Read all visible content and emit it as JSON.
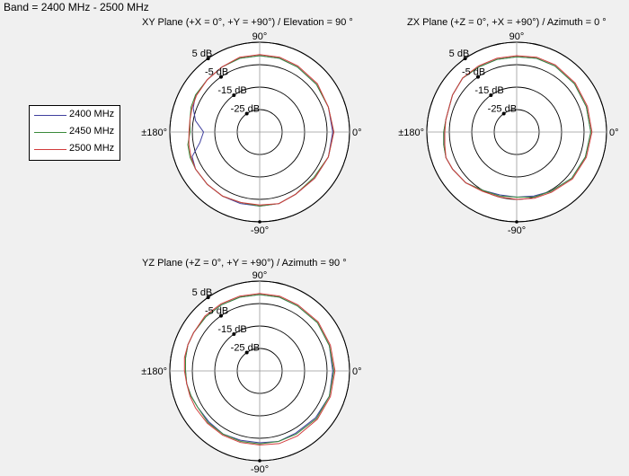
{
  "band_title": "Band = 2400 MHz - 2500 MHz",
  "legend": {
    "entries": [
      {
        "label": "2400 MHz",
        "color": "#3f3f9e"
      },
      {
        "label": "2450 MHz",
        "color": "#3b8a3b"
      },
      {
        "label": "2500 MHz",
        "color": "#d23c3c"
      }
    ]
  },
  "chart_data": [
    {
      "type": "polar",
      "title": "XY Plane (+X = 0°, +Y = +90°) / Elevation = 90 °",
      "angle_labels": {
        "top": "90°",
        "right": "0°",
        "bottom": "-90°",
        "left": "±180°"
      },
      "radial_labels": [
        "5 dB",
        "-5 dB",
        "-15 dB",
        "-25 dB"
      ],
      "radial_values_db": [
        5,
        -5,
        -15,
        -25
      ],
      "r_range_db": [
        -35,
        5
      ],
      "angles_deg": [
        0,
        20,
        40,
        60,
        75,
        90,
        105,
        120,
        135,
        150,
        160,
        170,
        180,
        190,
        200,
        210,
        225,
        240,
        255,
        270,
        285,
        300,
        320,
        340,
        360
      ],
      "series": [
        {
          "name": "2400 MHz",
          "values_db": [
            -2.5,
            -2.5,
            -2,
            -1.5,
            -1,
            -1,
            -1,
            -1.5,
            -2,
            -2,
            -3.5,
            -6,
            -10,
            -8,
            -3,
            -2,
            -2,
            -2,
            -2,
            -2,
            -2,
            -3,
            -3,
            -2.5,
            -2.5
          ]
        },
        {
          "name": "2450 MHz",
          "values_db": [
            -2,
            -2.5,
            -2,
            -1.5,
            -1,
            -1,
            -1,
            -1.5,
            -2,
            -2,
            -2.5,
            -3.5,
            -4,
            -2.5,
            -2,
            -2,
            -2,
            -2,
            -2.5,
            -2,
            -2,
            -3,
            -3.5,
            -2.5,
            -2
          ]
        },
        {
          "name": "2500 MHz",
          "values_db": [
            -2,
            -2.5,
            -1.5,
            -1,
            -0.5,
            -0.5,
            -0.5,
            -1.5,
            -2,
            -2.5,
            -3,
            -3.5,
            -3.5,
            -3,
            -2.5,
            -2,
            -2,
            -2,
            -2.5,
            -2.5,
            -2,
            -3,
            -3,
            -2.5,
            -2
          ]
        }
      ]
    },
    {
      "type": "polar",
      "title": "ZX Plane (+Z = 0°, +X = +90°) / Azimuth = 0 °",
      "angle_labels": {
        "top": "90°",
        "right": "0°",
        "bottom": "-90°",
        "left": "±180°"
      },
      "radial_labels": [
        "5 dB",
        "-5 dB",
        "-15 dB",
        "-25 dB"
      ],
      "radial_values_db": [
        5,
        -5,
        -15,
        -25
      ],
      "r_range_db": [
        -35,
        5
      ],
      "angles_deg": [
        0,
        20,
        40,
        60,
        75,
        90,
        105,
        120,
        135,
        150,
        160,
        170,
        180,
        190,
        200,
        210,
        225,
        240,
        255,
        270,
        285,
        300,
        320,
        340,
        360
      ],
      "series": [
        {
          "name": "2400 MHz",
          "values_db": [
            -2,
            -2,
            -1.5,
            -1,
            -1,
            -1.5,
            -1.5,
            -1.5,
            -1,
            -2,
            -3,
            -3,
            -2.5,
            -2,
            -1.5,
            -2,
            -3,
            -5,
            -6,
            -6,
            -5.5,
            -4.5,
            -3,
            -2.5,
            -2
          ]
        },
        {
          "name": "2450 MHz",
          "values_db": [
            -2,
            -2,
            -1.5,
            -1,
            -1,
            -1.5,
            -1.5,
            -1.5,
            -1,
            -2,
            -3,
            -3,
            -2.5,
            -2,
            -1.5,
            -2,
            -3,
            -5,
            -5.5,
            -6,
            -5,
            -4.5,
            -3,
            -2.5,
            -2
          ]
        },
        {
          "name": "2500 MHz",
          "values_db": [
            -1.5,
            -1.5,
            -1,
            -0.5,
            -0.5,
            -1,
            -1,
            -1,
            -1,
            -2,
            -3,
            -3,
            -3,
            -2.5,
            -1.5,
            -2,
            -3,
            -4.5,
            -5,
            -5,
            -4.5,
            -4,
            -2.5,
            -2,
            -1.5
          ]
        }
      ]
    },
    {
      "type": "polar",
      "title": "YZ Plane (+Z = 0°, +Y = +90°) / Azimuth = 90 °",
      "angle_labels": {
        "top": "90°",
        "right": "0°",
        "bottom": "-90°",
        "left": "±180°"
      },
      "radial_labels": [
        "5 dB",
        "-5 dB",
        "-15 dB",
        "-25 dB"
      ],
      "radial_values_db": [
        5,
        -5,
        -15,
        -25
      ],
      "r_range_db": [
        -35,
        5
      ],
      "angles_deg": [
        0,
        20,
        40,
        60,
        75,
        90,
        105,
        120,
        135,
        150,
        160,
        170,
        180,
        190,
        200,
        210,
        225,
        240,
        255,
        270,
        285,
        300,
        320,
        340,
        360
      ],
      "series": [
        {
          "name": "2400 MHz",
          "values_db": [
            -2.5,
            -2,
            -1.5,
            -1.5,
            -1,
            -1,
            -1,
            -1,
            -1,
            -1,
            -1,
            -1.5,
            -2,
            -2,
            -2.5,
            -3,
            -3,
            -2.5,
            -3,
            -3,
            -2.5,
            -3,
            -2.5,
            -2,
            -2.5
          ]
        },
        {
          "name": "2450 MHz",
          "values_db": [
            -2,
            -2,
            -1.5,
            -1.5,
            -1,
            -1,
            -1,
            -1,
            -1,
            -1,
            -1,
            -1.5,
            -2,
            -2,
            -2.5,
            -3,
            -2.5,
            -2.5,
            -2.5,
            -2.5,
            -2.5,
            -2.5,
            -2,
            -2,
            -2
          ]
        },
        {
          "name": "2500 MHz",
          "values_db": [
            -1.5,
            -1.5,
            -1,
            -1,
            -0.5,
            -0.5,
            -0.5,
            -0.5,
            -0.5,
            -1,
            -1,
            -1,
            -1.5,
            -2,
            -2,
            -2,
            -2,
            -2,
            -2,
            -2,
            -1.5,
            -1.5,
            -1.5,
            -1.5,
            -1.5
          ]
        }
      ]
    }
  ]
}
